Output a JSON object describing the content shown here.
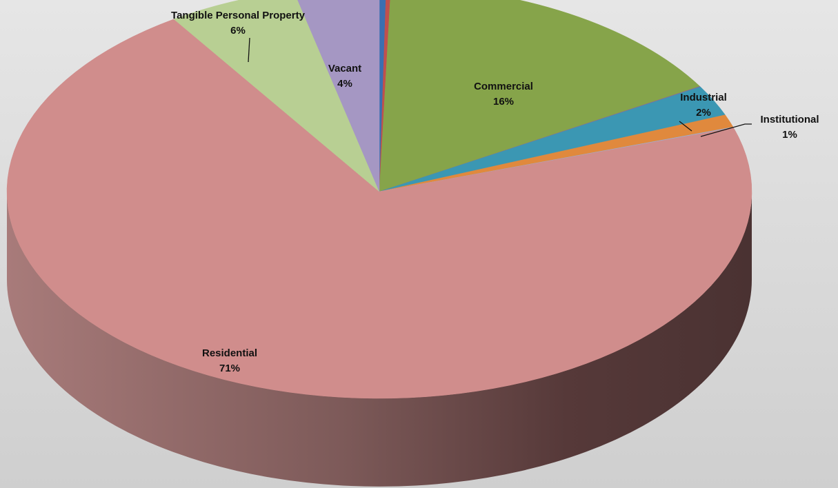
{
  "chart_data": {
    "type": "pie",
    "style": "3d-exploded-tilted",
    "title": "",
    "slices": [
      {
        "name": "",
        "value": 0.3,
        "label": "",
        "color": "#3b6fb0"
      },
      {
        "name": "",
        "value": 0.2,
        "label": "",
        "color": "#c0504d"
      },
      {
        "name": "Commercial",
        "value": 16,
        "label": "16%",
        "color": "#86a44a"
      },
      {
        "name": "",
        "value": 0.05,
        "label": "",
        "color": "#7f6aa0"
      },
      {
        "name": "Industrial",
        "value": 2.4,
        "label": "2%",
        "color": "#3b97b3"
      },
      {
        "name": "Institutional",
        "value": 1,
        "label": "1%",
        "color": "#e0893d"
      },
      {
        "name": "",
        "value": 0.05,
        "label": "",
        "color": "#9bb0d4"
      },
      {
        "name": "Residential",
        "value": 70.7,
        "label": "71%",
        "color": "#d08d8c"
      },
      {
        "name": "Tangible Personal Property",
        "value": 5.6,
        "label": "6%",
        "color": "#b8cf93"
      },
      {
        "name": "Vacant",
        "value": 3.7,
        "label": "4%",
        "color": "#a597c3"
      }
    ],
    "background": "#d9d9d9"
  }
}
